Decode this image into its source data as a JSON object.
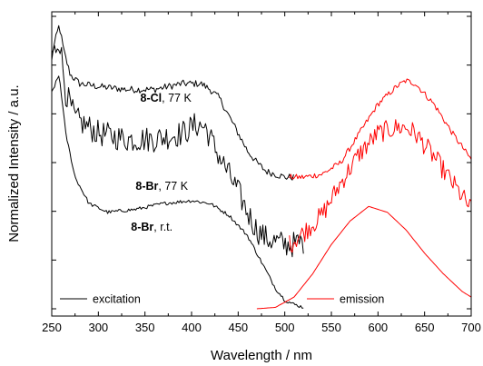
{
  "chart_data": {
    "type": "line",
    "xlabel": "Wavelength / nm",
    "ylabel": "Normalized Intensity / a.u.",
    "xlim": [
      250,
      700
    ],
    "ylim": [
      0,
      1
    ],
    "xticks": [
      "250",
      "300",
      "350",
      "400",
      "450",
      "500",
      "550",
      "600",
      "650",
      "700"
    ],
    "y_tick_labels_shown": false,
    "grid": false,
    "legend": {
      "position": "bottom",
      "entries": [
        {
          "label": "excitation",
          "color": "#000000"
        },
        {
          "label": "emission",
          "color": "#ff0000"
        }
      ]
    },
    "annotations": [
      {
        "bold": "8-Cl",
        "rest": ", 77 K",
        "x": 345,
        "y": 0.72
      },
      {
        "bold": "8-Br",
        "rest": ", 77 K",
        "x": 340,
        "y": 0.42
      },
      {
        "bold": "8-Br",
        "rest": ", r.t.",
        "x": 335,
        "y": 0.28
      }
    ],
    "series": [
      {
        "group": "8-Cl, 77 K",
        "kind": "excitation",
        "color": "#000000",
        "noise": 0.012,
        "x": [
          250,
          258,
          263,
          270,
          280,
          300,
          330,
          360,
          390,
          410,
          420,
          430,
          440,
          450,
          460,
          470,
          480,
          490,
          500,
          510
        ],
        "y": [
          0.87,
          0.97,
          0.88,
          0.8,
          0.77,
          0.76,
          0.75,
          0.75,
          0.77,
          0.77,
          0.75,
          0.72,
          0.66,
          0.6,
          0.54,
          0.5,
          0.47,
          0.46,
          0.45,
          0.45
        ]
      },
      {
        "group": "8-Cl, 77 K",
        "kind": "emission",
        "color": "#ff0000",
        "noise": 0.01,
        "x": [
          505,
          520,
          540,
          560,
          580,
          600,
          620,
          630,
          640,
          660,
          680,
          700
        ],
        "y": [
          0.45,
          0.45,
          0.46,
          0.5,
          0.6,
          0.7,
          0.76,
          0.78,
          0.77,
          0.7,
          0.6,
          0.51
        ]
      },
      {
        "group": "8-Br, 77 K",
        "kind": "excitation",
        "color": "#000000",
        "noise": 0.045,
        "x": [
          250,
          258,
          265,
          275,
          300,
          330,
          360,
          390,
          405,
          415,
          425,
          440,
          450,
          460,
          470,
          480,
          490,
          500,
          510,
          520
        ],
        "y": [
          0.85,
          0.93,
          0.74,
          0.65,
          0.6,
          0.58,
          0.58,
          0.6,
          0.63,
          0.62,
          0.55,
          0.46,
          0.4,
          0.33,
          0.27,
          0.24,
          0.23,
          0.22,
          0.22,
          0.23
        ]
      },
      {
        "group": "8-Br, 77 K",
        "kind": "emission",
        "color": "#ff0000",
        "noise": 0.035,
        "x": [
          505,
          520,
          540,
          560,
          580,
          600,
          620,
          630,
          640,
          660,
          680,
          700
        ],
        "y": [
          0.22,
          0.26,
          0.32,
          0.43,
          0.53,
          0.6,
          0.62,
          0.62,
          0.6,
          0.52,
          0.43,
          0.34
        ]
      },
      {
        "group": "8-Br, r.t.",
        "kind": "excitation",
        "color": "#000000",
        "noise": 0.006,
        "x": [
          250,
          258,
          265,
          275,
          290,
          310,
          340,
          370,
          400,
          420,
          440,
          460,
          470,
          480,
          490,
          500,
          510,
          520
        ],
        "y": [
          0.74,
          0.8,
          0.6,
          0.45,
          0.36,
          0.33,
          0.34,
          0.36,
          0.37,
          0.36,
          0.32,
          0.25,
          0.19,
          0.13,
          0.07,
          0.03,
          0.015,
          0.005
        ]
      },
      {
        "group": "8-Br, r.t.",
        "kind": "emission",
        "color": "#ff0000",
        "noise": 0.0,
        "x": [
          470,
          490,
          510,
          530,
          550,
          570,
          590,
          610,
          630,
          650,
          670,
          690,
          700
        ],
        "y": [
          0.0,
          0.005,
          0.04,
          0.12,
          0.22,
          0.3,
          0.35,
          0.33,
          0.27,
          0.19,
          0.12,
          0.06,
          0.04
        ]
      }
    ]
  }
}
